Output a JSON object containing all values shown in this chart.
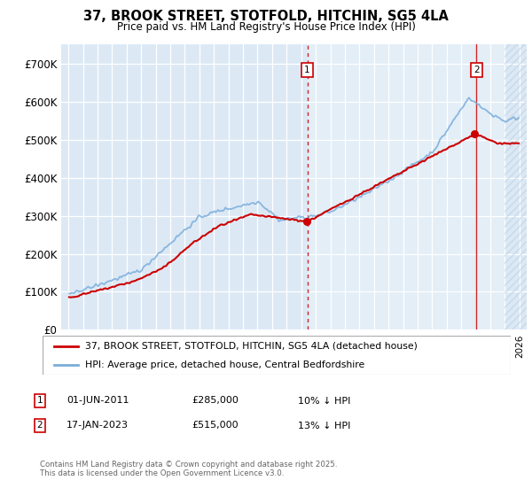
{
  "title": "37, BROOK STREET, STOTFOLD, HITCHIN, SG5 4LA",
  "subtitle": "Price paid vs. HM Land Registry's House Price Index (HPI)",
  "legend_label_red": "37, BROOK STREET, STOTFOLD, HITCHIN, SG5 4LA (detached house)",
  "legend_label_blue": "HPI: Average price, detached house, Central Bedfordshire",
  "footnote": "Contains HM Land Registry data © Crown copyright and database right 2025.\nThis data is licensed under the Open Government Licence v3.0.",
  "annotation1": {
    "label": "1",
    "date": "01-JUN-2011",
    "price": "£285,000",
    "hpi": "10% ↓ HPI"
  },
  "annotation2": {
    "label": "2",
    "date": "17-JAN-2023",
    "price": "£515,000",
    "hpi": "13% ↓ HPI"
  },
  "ylim": [
    0,
    750000
  ],
  "yticks": [
    0,
    100000,
    200000,
    300000,
    400000,
    500000,
    600000,
    700000
  ],
  "ytick_labels": [
    "£0",
    "£100K",
    "£200K",
    "£300K",
    "£400K",
    "£500K",
    "£600K",
    "£700K"
  ],
  "background_color": "#dce9f5",
  "shade_color": "#dce9f5",
  "red_color": "#cc0000",
  "blue_color": "#7aaddb",
  "vline_color": "#cc0000",
  "annotation_box_color": "#cc0000",
  "vline1_x": 2011.42,
  "vline2_x": 2023.05,
  "shade_start": 2011.42,
  "xlim": [
    1994.5,
    2026.5
  ]
}
